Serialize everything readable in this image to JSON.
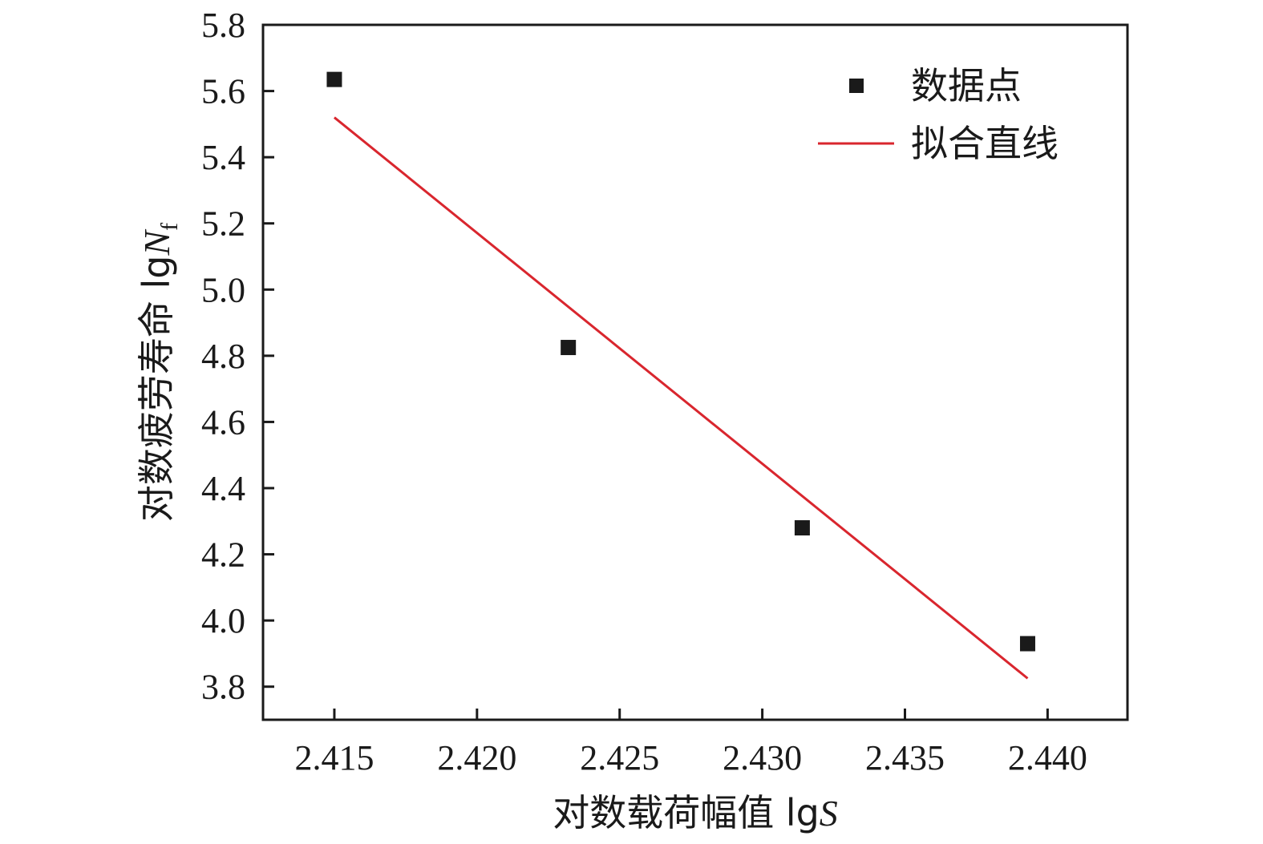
{
  "chart_data": {
    "type": "scatter",
    "title": "",
    "xlabel": {
      "prefix": "对数载荷幅值 lg",
      "var": "S",
      "sub": ""
    },
    "ylabel": {
      "prefix": "对数疲劳寿命 lg",
      "var": "N",
      "sub": "f"
    },
    "xlim": [
      2.4125,
      2.4428
    ],
    "ylim": [
      3.7,
      5.8
    ],
    "xticks": [
      2.415,
      2.42,
      2.425,
      2.43,
      2.435,
      2.44
    ],
    "xtick_labels": [
      "2.415",
      "2.420",
      "2.425",
      "2.430",
      "2.435",
      "2.440"
    ],
    "yticks": [
      3.8,
      4.0,
      4.2,
      4.4,
      4.6,
      4.8,
      5.0,
      5.2,
      5.4,
      5.6,
      5.8
    ],
    "ytick_labels": [
      "3.8",
      "4.0",
      "4.2",
      "4.4",
      "4.6",
      "4.8",
      "5.0",
      "5.2",
      "5.4",
      "5.6",
      "5.8"
    ],
    "grid": false,
    "legend_position": "top-right",
    "series": [
      {
        "name": "数据点",
        "kind": "scatter",
        "marker": "square",
        "color": "#1a1a1a",
        "x": [
          2.415,
          2.4232,
          2.4314,
          2.4393
        ],
        "y": [
          5.635,
          4.825,
          4.28,
          3.93
        ]
      },
      {
        "name": "拟合直线",
        "kind": "line",
        "color": "#d9262e",
        "x": [
          2.415,
          2.4393
        ],
        "y": [
          5.52,
          3.825
        ]
      }
    ]
  }
}
